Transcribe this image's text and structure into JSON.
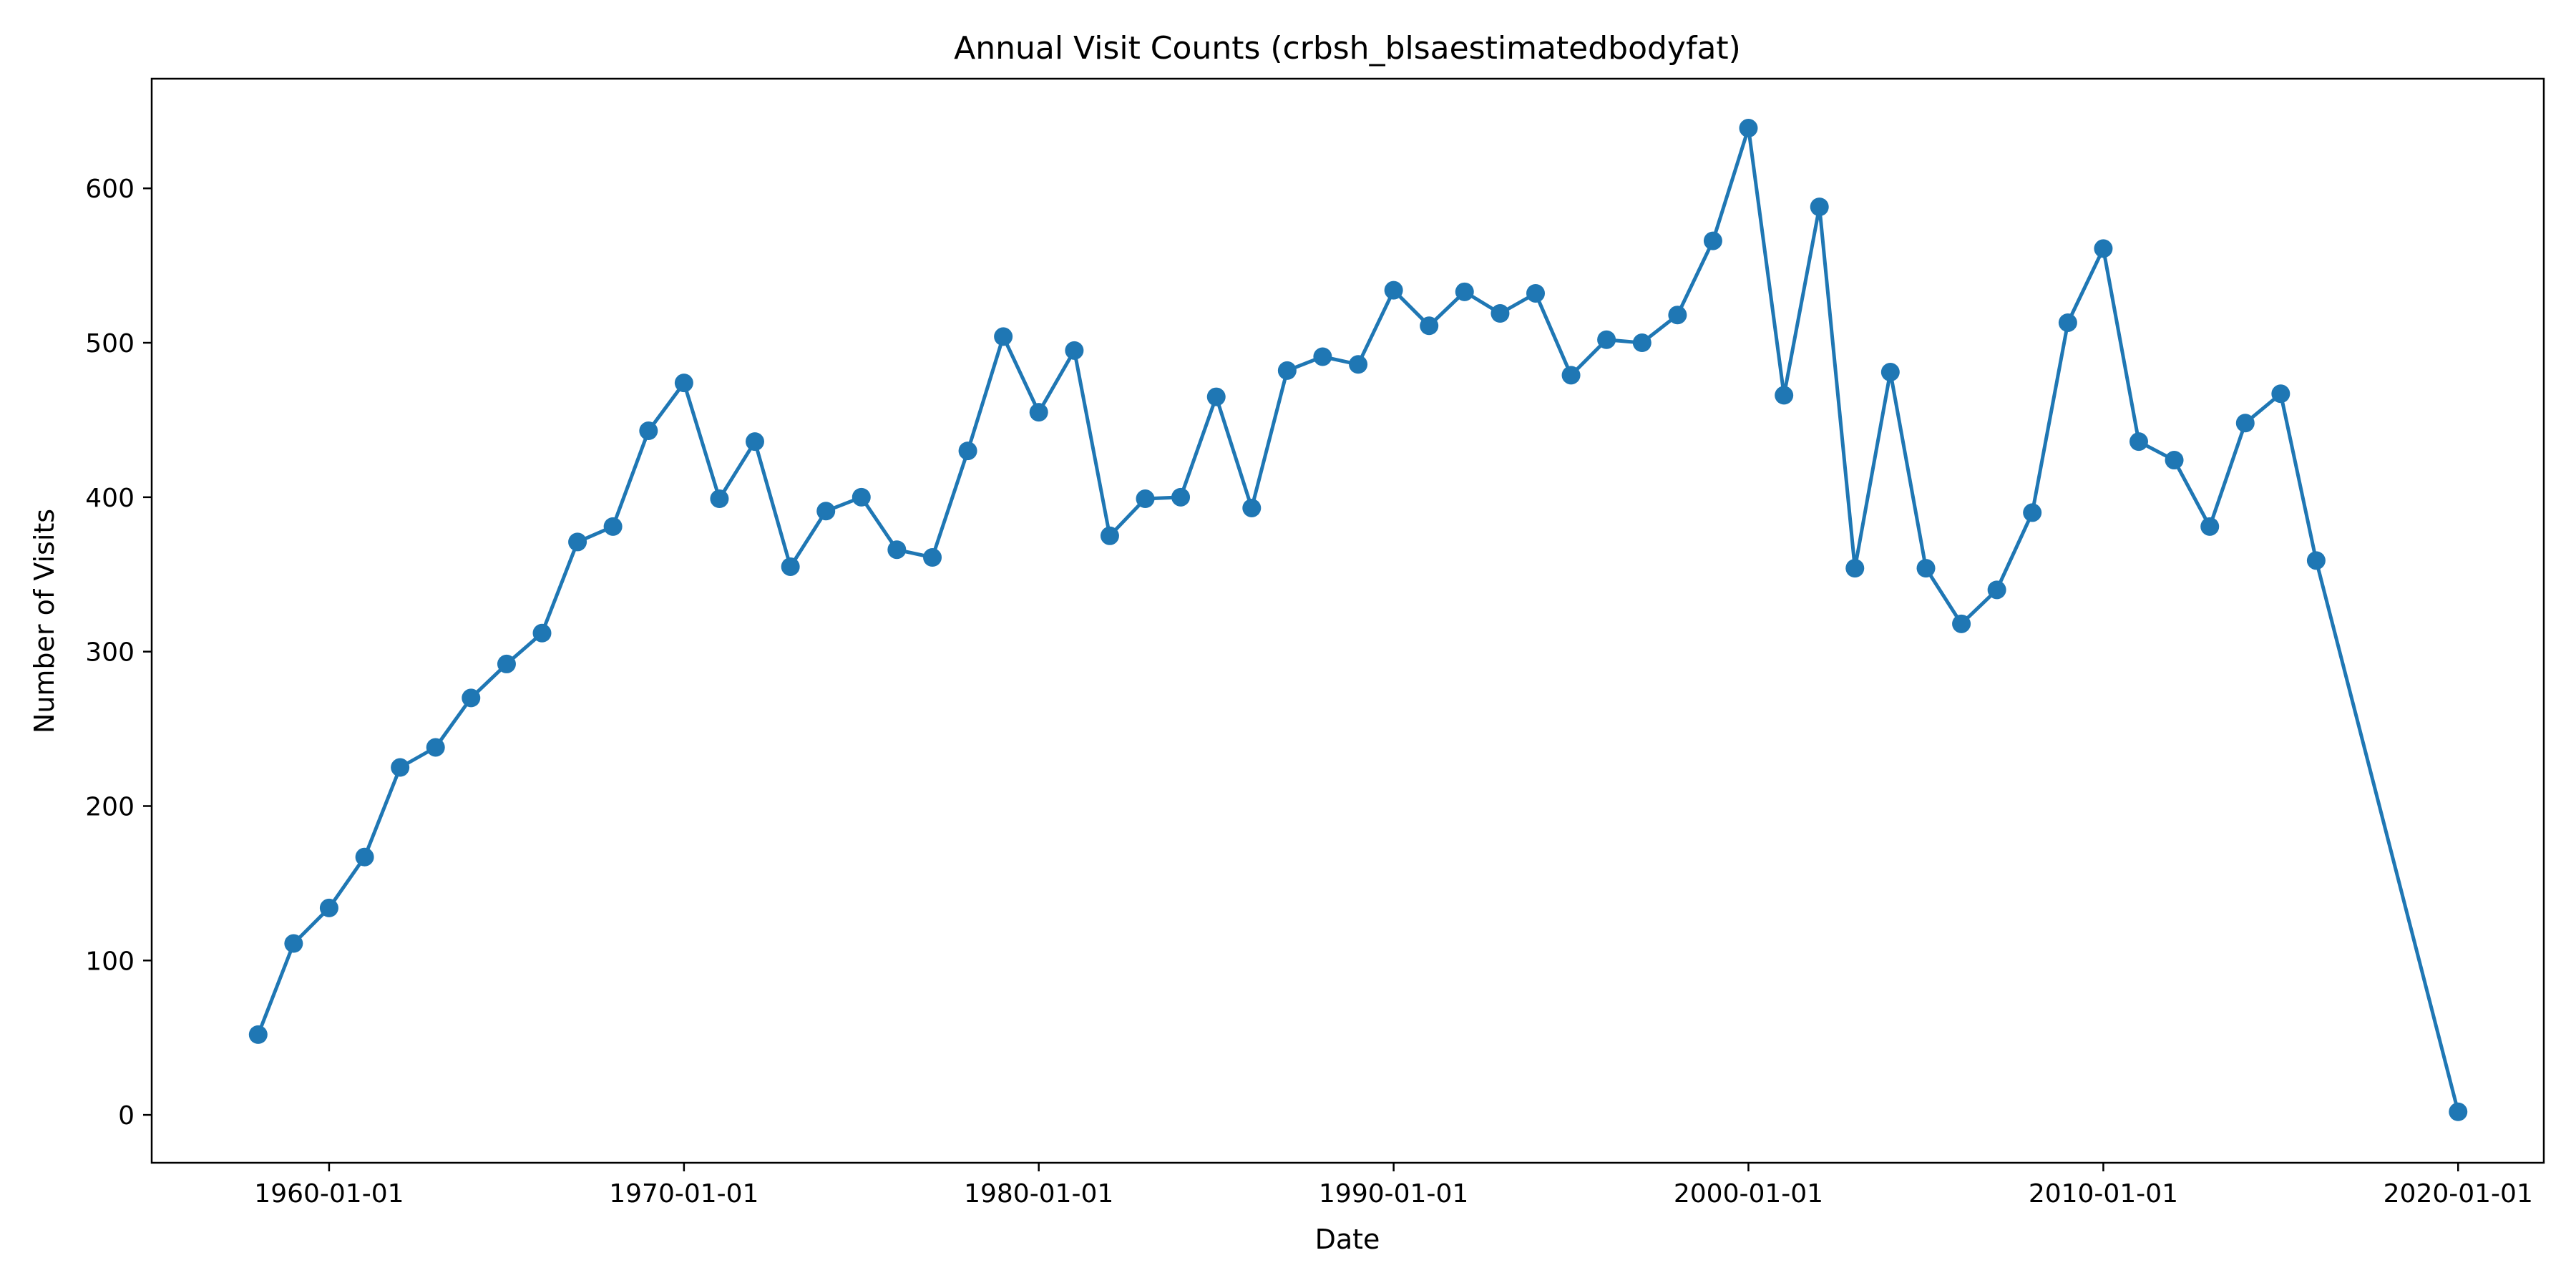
{
  "chart_data": {
    "type": "line",
    "title": "Annual Visit Counts (crbsh_blsaestimatedbodyfat)",
    "xlabel": "Date",
    "ylabel": "Number of Visits",
    "x_ticks": [
      "1960-01-01",
      "1970-01-01",
      "1980-01-01",
      "1990-01-01",
      "2000-01-01",
      "2010-01-01",
      "2020-01-01"
    ],
    "y_ticks": [
      0,
      100,
      200,
      300,
      400,
      500,
      600
    ],
    "xlim": [
      "1955-01-01",
      "2022-06-01"
    ],
    "ylim": [
      -31,
      671
    ],
    "grid": false,
    "color": "#1f77b4",
    "series": [
      {
        "x": [
          "1958-01-01",
          "1959-01-01",
          "1960-01-01",
          "1961-01-01",
          "1962-01-01",
          "1963-01-01",
          "1964-01-01",
          "1965-01-01",
          "1966-01-01",
          "1967-01-01",
          "1968-01-01",
          "1969-01-01",
          "1970-01-01",
          "1971-01-01",
          "1972-01-01",
          "1973-01-01",
          "1974-01-01",
          "1975-01-01",
          "1976-01-01",
          "1977-01-01",
          "1978-01-01",
          "1979-01-01",
          "1980-01-01",
          "1981-01-01",
          "1982-01-01",
          "1983-01-01",
          "1984-01-01",
          "1985-01-01",
          "1986-01-01",
          "1987-01-01",
          "1988-01-01",
          "1989-01-01",
          "1990-01-01",
          "1991-01-01",
          "1992-01-01",
          "1993-01-01",
          "1994-01-01",
          "1995-01-01",
          "1996-01-01",
          "1997-01-01",
          "1998-01-01",
          "1999-01-01",
          "2000-01-01",
          "2001-01-01",
          "2002-01-01",
          "2003-01-01",
          "2004-01-01",
          "2005-01-01",
          "2006-01-01",
          "2007-01-01",
          "2008-01-01",
          "2009-01-01",
          "2010-01-01",
          "2011-01-01",
          "2012-01-01",
          "2013-01-01",
          "2014-01-01",
          "2015-01-01",
          "2016-01-01",
          "2020-01-01"
        ],
        "values": [
          52,
          111,
          134,
          167,
          225,
          238,
          270,
          292,
          312,
          371,
          381,
          443,
          474,
          399,
          436,
          355,
          391,
          400,
          366,
          361,
          430,
          504,
          455,
          495,
          375,
          399,
          400,
          465,
          393,
          482,
          491,
          486,
          534,
          511,
          533,
          519,
          532,
          479,
          502,
          500,
          518,
          566,
          639,
          466,
          588,
          354,
          481,
          354,
          318,
          340,
          390,
          513,
          561,
          436,
          424,
          381,
          448,
          467,
          359,
          2
        ]
      }
    ]
  }
}
